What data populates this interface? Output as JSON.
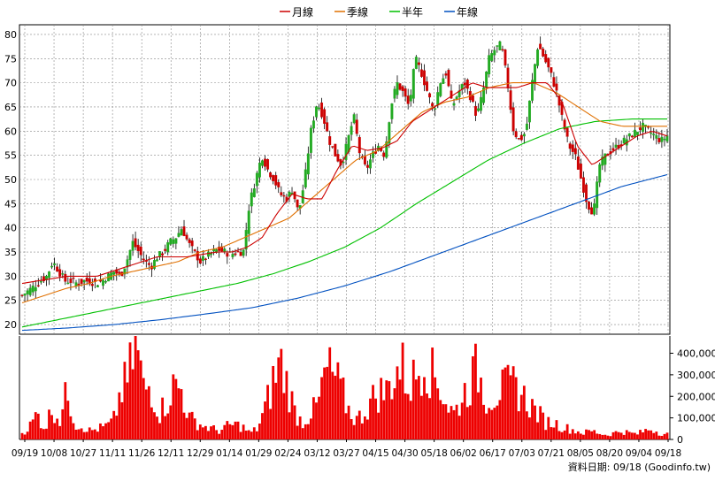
{
  "chart_data": [
    {
      "type": "candlestick",
      "panel": "price",
      "legend": [
        {
          "label": "月線",
          "color": "#cc0000"
        },
        {
          "label": "季線",
          "color": "#e07000"
        },
        {
          "label": "半年",
          "color": "#00c000"
        },
        {
          "label": "年線",
          "color": "#0050c0"
        }
      ],
      "ylim": [
        18,
        82
      ],
      "yticks": [
        20,
        25,
        30,
        35,
        40,
        45,
        50,
        55,
        60,
        65,
        70,
        75,
        80
      ],
      "x_tick_labels": [
        "09/19",
        "10/08",
        "10/27",
        "11/11",
        "11/26",
        "12/11",
        "12/29",
        "01/14",
        "01/29",
        "02/24",
        "03/12",
        "03/27",
        "04/15",
        "04/30",
        "05/18",
        "06/02",
        "06/17",
        "07/03",
        "07/21",
        "08/05",
        "08/20",
        "09/04",
        "09/18"
      ],
      "up_color": "#22aa22",
      "down_color": "#cc0000",
      "close_anchors": [
        26,
        27,
        28,
        29,
        30,
        33,
        31,
        29,
        29,
        28.5,
        29,
        29,
        28.5,
        29,
        30,
        31,
        30,
        33,
        37,
        35,
        33,
        32,
        34,
        35,
        37,
        38,
        40,
        37,
        35,
        33,
        34,
        35,
        35.5,
        35,
        34.5,
        35,
        35,
        45,
        50,
        55,
        52,
        50,
        47,
        46,
        48,
        43,
        50,
        60,
        66,
        63,
        58,
        55,
        53,
        58,
        63,
        55,
        52,
        55,
        57,
        55,
        65,
        70,
        68,
        65,
        75,
        72,
        68,
        64,
        70,
        72,
        65,
        68,
        70,
        67,
        63,
        68,
        75,
        77,
        78,
        70,
        60,
        58,
        60,
        70,
        78,
        75,
        72,
        68,
        62,
        57,
        55,
        50,
        45,
        43,
        53,
        55,
        56,
        57,
        58,
        59,
        60,
        61,
        60,
        59,
        58,
        59
      ],
      "sma_month": [
        28.5,
        29,
        29.5,
        30,
        30,
        30,
        31,
        32,
        33,
        34,
        34,
        34,
        34.5,
        35,
        35,
        36,
        38,
        43,
        47,
        46,
        46,
        52,
        57,
        56,
        56.5,
        58,
        62,
        64,
        66,
        68,
        70,
        69,
        69,
        69,
        70,
        70,
        66,
        57,
        53,
        55,
        57,
        59,
        60,
        59
      ],
      "sma_quarter": [
        24.5,
        26,
        27.5,
        28.5,
        30,
        31,
        32,
        33,
        35,
        36,
        38,
        40,
        42,
        46,
        50,
        54,
        56,
        60,
        64,
        66,
        67,
        69,
        70,
        70,
        68,
        65,
        62,
        61,
        61,
        61
      ],
      "sma_half": [
        19.5,
        21,
        22.5,
        24,
        25.5,
        27,
        28.5,
        30.5,
        33,
        36,
        40,
        45,
        49.5,
        54,
        57.5,
        60.5,
        62,
        62.5,
        62.5
      ],
      "sma_year": [
        18.8,
        19.3,
        20,
        21,
        22.2,
        23.5,
        25.5,
        28,
        31,
        34.5,
        38,
        41.5,
        45,
        48.5,
        51
      ],
      "ohlc_series_note": "Daily candles reconstructed from close anchors"
    },
    {
      "type": "bar",
      "panel": "volume",
      "ylim": [
        0,
        480000
      ],
      "yticks": [
        0,
        100000,
        200000,
        300000,
        400000
      ],
      "ytick_labels": [
        "0",
        "100,000",
        "200,000",
        "300,000",
        "400,000"
      ],
      "bar_color": "#ee0000",
      "volume_anchors": [
        30000,
        60000,
        120000,
        50000,
        150000,
        90000,
        230000,
        70000,
        60000,
        40000,
        50000,
        60000,
        80000,
        220000,
        280000,
        460000,
        230000,
        250000,
        120000,
        170000,
        250000,
        230000,
        100000,
        80000,
        60000,
        50000,
        40000,
        60000,
        70000,
        60000,
        30000,
        50000,
        140000,
        260000,
        360000,
        250000,
        120000,
        80000,
        120000,
        160000,
        320000,
        300000,
        230000,
        140000,
        90000,
        120000,
        180000,
        220000,
        220000,
        300000,
        340000,
        250000,
        300000,
        400000,
        300000,
        260000,
        160000,
        120000,
        200000,
        260000,
        330000,
        200000,
        200000,
        230000,
        240000,
        250000,
        200000,
        160000,
        120000,
        80000,
        80000,
        60000,
        50000,
        40000,
        30000,
        40000,
        30000,
        20000,
        30000,
        40000,
        30000,
        25000,
        40000,
        50000,
        30000,
        25000
      ]
    }
  ],
  "footer": {
    "source_label": "資料日期: 09/18 (Goodinfo.tw)"
  }
}
